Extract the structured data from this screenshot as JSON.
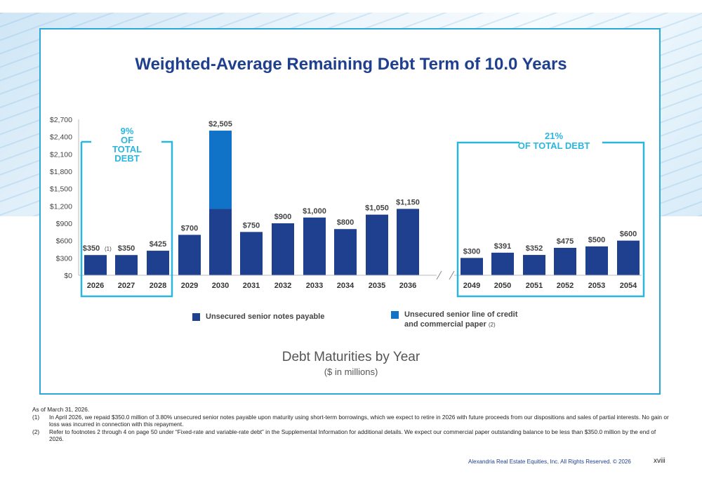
{
  "title": "Weighted-Average Remaining Debt Term of 10.0 Years",
  "subtitle": "Debt Maturities by Year",
  "subtitle_units": "($ in millions)",
  "box_left": {
    "line1": "9%",
    "line2": "OF",
    "line3": "TOTAL",
    "line4": "DEBT"
  },
  "box_right": {
    "line1": "21%",
    "line2": "OF TOTAL DEBT"
  },
  "legend": {
    "item1": "Unsecured senior notes payable",
    "item2_line1": "Unsecured senior line of credit",
    "item2_line2": "and commercial paper",
    "item2_note": "(2)"
  },
  "colors": {
    "notes": "#1f3f8f",
    "credit": "#1173c8",
    "accent": "#2ab6df"
  },
  "chart_data": {
    "type": "bar",
    "stacked": true,
    "axis_break_between": [
      "2036",
      "2049"
    ],
    "categories": [
      "2026",
      "2027",
      "2028",
      "2029",
      "2030",
      "2031",
      "2032",
      "2033",
      "2034",
      "2035",
      "2036",
      "2049",
      "2050",
      "2051",
      "2052",
      "2053",
      "2054"
    ],
    "series": [
      {
        "name": "Unsecured senior notes payable",
        "values": [
          350,
          350,
          425,
          700,
          1150,
          750,
          900,
          1000,
          800,
          1050,
          1150,
          300,
          391,
          352,
          475,
          500,
          600
        ]
      },
      {
        "name": "Unsecured senior line of credit and commercial paper",
        "values": [
          0,
          0,
          0,
          0,
          1355,
          0,
          0,
          0,
          0,
          0,
          0,
          0,
          0,
          0,
          0,
          0,
          0
        ]
      }
    ],
    "totals_labels": [
      "$350",
      "$350",
      "$425",
      "$700",
      "$2,505",
      "$750",
      "$900",
      "$1,000",
      "$800",
      "$1,050",
      "$1,150",
      "$300",
      "$391",
      "$352",
      "$475",
      "$500",
      "$600"
    ],
    "label_note": {
      "category": "2026",
      "text": "(1)"
    },
    "y_ticks": [
      0,
      300,
      600,
      900,
      1200,
      1500,
      1800,
      2100,
      2400,
      2700
    ],
    "y_tick_labels": [
      "$0",
      "$300",
      "$600",
      "$900",
      "$1,200",
      "$1,500",
      "$1,800",
      "$2,100",
      "$2,400",
      "$2,700"
    ],
    "ylim": [
      0,
      2700
    ],
    "grid": false
  },
  "footnotes": {
    "asof": "As of March 31, 2026.",
    "items": [
      {
        "num": "(1)",
        "text": "In April 2026, we repaid $350.0 million of 3.80% unsecured senior notes payable upon maturity using short-term borrowings, which we expect to retire in 2026 with future proceeds from our dispositions and sales of partial interests. No gain or loss was incurred in connection with this repayment."
      },
      {
        "num": "(2)",
        "text": "Refer to footnotes 2 through 4 on page 50 under “Fixed-rate and variable-rate debt” in the Supplemental Information for additional details. We expect our commercial paper outstanding balance to be less than $350.0 million by the end of 2026."
      }
    ]
  },
  "footer": {
    "copyright": "Alexandria Real Estate Equities, Inc. All Rights Reserved. © 2026",
    "page": "xviii"
  }
}
